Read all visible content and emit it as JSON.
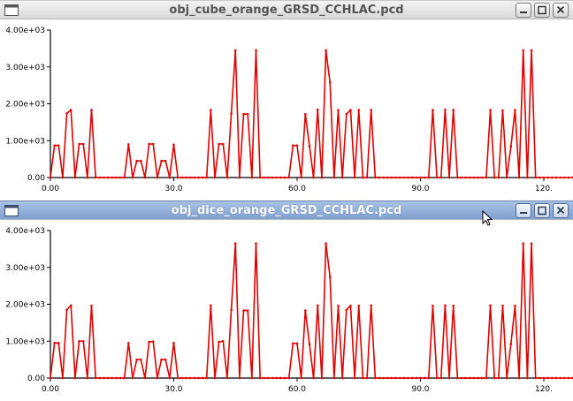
{
  "windows": [
    {
      "title": "obj_cube_orange_GRSD_CCHLAC.pcd",
      "icons": {
        "menu": "window-menu-icon",
        "minimize": "minimize-icon",
        "maximize": "maximize-icon",
        "close": "close-icon"
      }
    },
    {
      "title": "obj_dice_orange_GRSD_CCHLAC.pcd",
      "icons": {
        "menu": "window-menu-icon",
        "minimize": "minimize-icon",
        "maximize": "maximize-icon",
        "close": "close-icon"
      }
    }
  ],
  "colors": {
    "line": "#e00000",
    "axis": "#000000",
    "active_title": "#7f9fcf"
  },
  "chart_data": [
    {
      "type": "line",
      "title": "",
      "xlabel": "",
      "ylabel": "",
      "xlim": [
        0,
        120
      ],
      "ylim": [
        0,
        4000
      ],
      "x_ticks": [
        "0.00",
        "30.0",
        "60.0",
        "90.0",
        "120."
      ],
      "y_ticks": [
        "0.00",
        "1.00e+03",
        "2.00e+03",
        "3.00e+03",
        "4.00e+03"
      ],
      "series": [
        {
          "values": [
            0,
            870,
            870,
            0,
            1740,
            1830,
            0,
            910,
            910,
            0,
            1830,
            0,
            0,
            0,
            0,
            0,
            0,
            0,
            0,
            900,
            0,
            450,
            450,
            0,
            910,
            910,
            0,
            450,
            450,
            0,
            890,
            0,
            0,
            0,
            0,
            0,
            0,
            0,
            0,
            1830,
            0,
            910,
            910,
            0,
            1740,
            3450,
            0,
            1720,
            1720,
            0,
            3450,
            0,
            0,
            0,
            0,
            0,
            0,
            0,
            0,
            870,
            870,
            0,
            1720,
            860,
            0,
            1840,
            0,
            3450,
            2580,
            0,
            1830,
            0,
            1720,
            1830,
            0,
            1830,
            0,
            0,
            1830,
            0,
            0,
            0,
            0,
            0,
            0,
            0,
            0,
            0,
            0,
            0,
            0,
            0,
            0,
            1830,
            0,
            0,
            1840,
            0,
            1830,
            0,
            0,
            0,
            0,
            0,
            0,
            0,
            0,
            1830,
            0,
            0,
            1820,
            0,
            840,
            1830,
            0,
            3450,
            0,
            3450,
            0,
            0,
            0,
            0,
            0,
            0,
            0,
            0,
            0,
            0,
            0,
            0,
            0,
            3450,
            0
          ]
        }
      ]
    },
    {
      "type": "line",
      "title": "",
      "xlabel": "",
      "ylabel": "",
      "xlim": [
        0,
        120
      ],
      "ylim": [
        0,
        4000
      ],
      "x_ticks": [
        "0.00",
        "30.0",
        "60.0",
        "90.0",
        "120."
      ],
      "y_ticks": [
        "0.00",
        "1.00e+03",
        "2.00e+03",
        "3.00e+03",
        "4.00e+03"
      ],
      "series": [
        {
          "values": [
            0,
            950,
            950,
            0,
            1850,
            1970,
            0,
            1000,
            1000,
            0,
            1960,
            0,
            0,
            0,
            0,
            0,
            0,
            0,
            0,
            950,
            0,
            500,
            500,
            0,
            980,
            990,
            0,
            500,
            500,
            0,
            950,
            0,
            0,
            0,
            0,
            0,
            0,
            0,
            0,
            1970,
            0,
            980,
            1000,
            0,
            1850,
            3650,
            0,
            1830,
            1830,
            0,
            3650,
            0,
            0,
            0,
            0,
            0,
            0,
            0,
            0,
            940,
            940,
            0,
            1830,
            920,
            0,
            1970,
            0,
            3650,
            2750,
            0,
            1960,
            0,
            1850,
            1960,
            0,
            1960,
            0,
            0,
            1970,
            0,
            0,
            0,
            0,
            0,
            0,
            0,
            0,
            0,
            0,
            0,
            0,
            0,
            0,
            1960,
            0,
            0,
            1970,
            0,
            1960,
            0,
            0,
            0,
            0,
            0,
            0,
            0,
            0,
            1970,
            0,
            0,
            1960,
            0,
            920,
            1960,
            0,
            3650,
            0,
            3650,
            0,
            0,
            0,
            0,
            0,
            0,
            0,
            0,
            0,
            0,
            0,
            0,
            0,
            3650,
            0
          ]
        }
      ]
    }
  ],
  "cursor": {
    "icon": "mouse-pointer-icon"
  }
}
